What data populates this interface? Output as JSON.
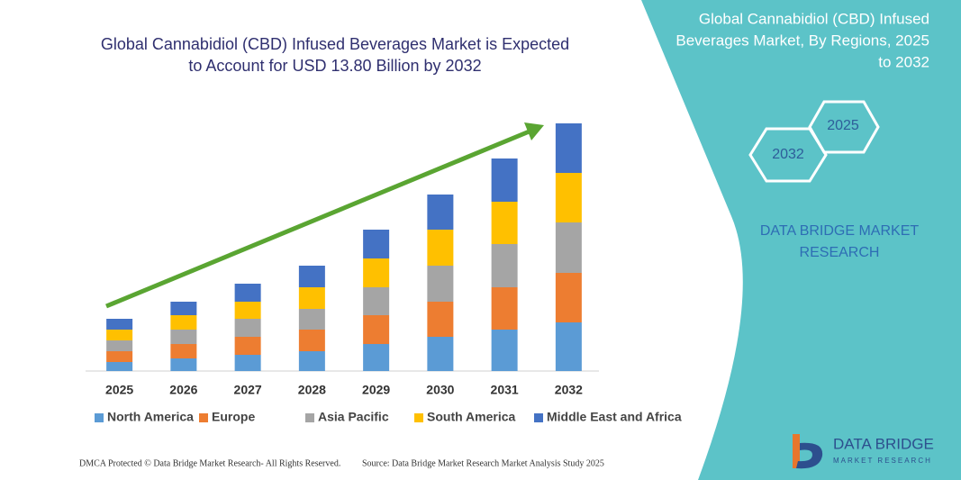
{
  "chart_data": {
    "type": "stacked-bar",
    "title": [
      "Global Cannabidiol (CBD) Infused Beverages Market is Expected",
      "to Account for USD 13.80 Billion by 2032"
    ],
    "categories": [
      "2025",
      "2026",
      "2027",
      "2028",
      "2029",
      "2030",
      "2031",
      "2032"
    ],
    "series": [
      {
        "name": "North America",
        "color": "#5b9bd5",
        "values": [
          10,
          14,
          18,
          22,
          30,
          38,
          46,
          54
        ]
      },
      {
        "name": "Europe",
        "color": "#ed7d31",
        "values": [
          12,
          16,
          20,
          24,
          32,
          39,
          47,
          55
        ]
      },
      {
        "name": "Asia Pacific",
        "color": "#a5a5a5",
        "values": [
          12,
          16,
          20,
          23,
          31,
          40,
          48,
          56
        ]
      },
      {
        "name": "South America",
        "color": "#ffc000",
        "values": [
          12,
          16,
          19,
          24,
          32,
          40,
          47,
          55
        ]
      },
      {
        "name": "Middle East and Africa",
        "color": "#4472c4",
        "values": [
          12,
          15,
          20,
          24,
          32,
          39,
          48,
          55
        ]
      }
    ]
  },
  "panel": {
    "title": [
      "Global Cannabidiol (CBD) Infused",
      "Beverages Market, By Regions, 2025",
      "to 2032"
    ],
    "hex_start": "2025",
    "hex_end": "2032",
    "brand": [
      "DATA BRIDGE MARKET",
      "RESEARCH"
    ]
  },
  "footer": {
    "left": "DMCA Protected © Data Bridge Market Research- All Rights Reserved.",
    "right": "Source: Data Bridge Market Research Market Analysis Study 2025"
  },
  "logo": {
    "name": "DATA BRIDGE",
    "tagline": "MARKET RESEARCH"
  }
}
